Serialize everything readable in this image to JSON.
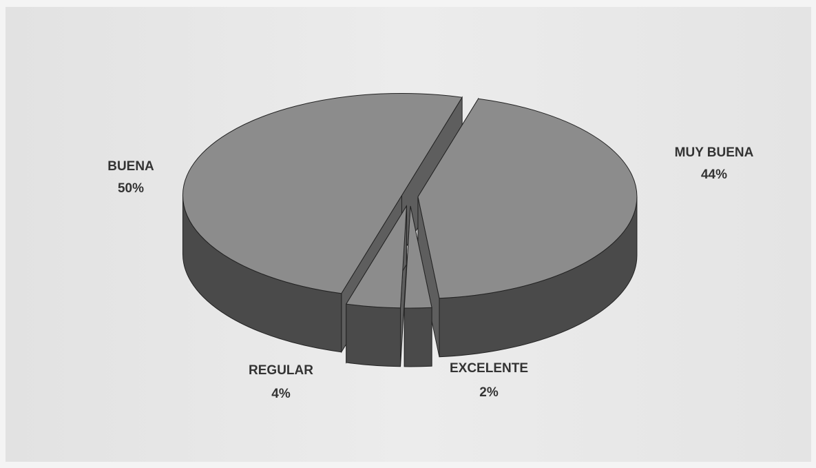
{
  "chart_data": {
    "type": "pie",
    "categories": [
      "MUY BUENA",
      "EXCELENTE",
      "REGULAR",
      "BUENA"
    ],
    "values": [
      44,
      2,
      4,
      50
    ],
    "value_labels": [
      "44%",
      "2%",
      "4%",
      "50%"
    ],
    "colors": [
      "#8c8c8c",
      "#8c8c8c",
      "#8c8c8c",
      "#8c8c8c"
    ]
  }
}
